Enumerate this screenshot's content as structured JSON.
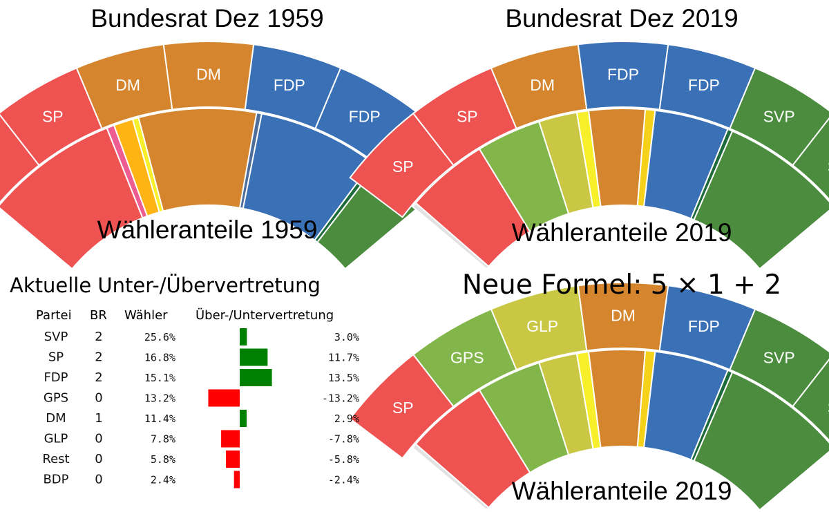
{
  "titles": {
    "top_left": "Bundesrat Dez 1959",
    "top_right": "Bundesrat Dez 2019",
    "mid_left": "Wähleranteile 1959",
    "mid_right": "Wähleranteile 2019",
    "table_title": "Aktuelle Unter-/Übervertretung",
    "formula_title": "Neue Formel: 5 × 1 + 2",
    "bottom_right": "Wähleranteile 2019"
  },
  "colors": {
    "SP": "#ee5352",
    "DM": "#d4852e",
    "FDP": "#3a70b5",
    "SVP": "#4b8c3e",
    "GPS": "#82b64a",
    "GLP": "#c9c744",
    "BDP": "#f5d219",
    "pink": "#ee5d91",
    "orange": "#ffb414",
    "yellow": "#f7ef2a",
    "darkgreen": "#1d6b3c",
    "lightgrey": "#e2e2e2",
    "bar_pos": "#008000",
    "bar_neg": "#ff0000"
  },
  "chart_data": [
    {
      "type": "pie",
      "id": "seats_1959",
      "title": "Bundesrat Dez 1959",
      "note": "semicircle seat arc, one segment per Federal Council seat",
      "labels": [
        "SP",
        "SP",
        "DM",
        "DM",
        "FDP",
        "FDP",
        "SVP"
      ],
      "values": [
        1,
        1,
        1,
        1,
        1,
        1,
        1
      ],
      "colors": [
        "#ee5352",
        "#ee5352",
        "#d4852e",
        "#d4852e",
        "#3a70b5",
        "#3a70b5",
        "#4b8c3e"
      ]
    },
    {
      "type": "pie",
      "id": "votes_1959",
      "title": "Wähleranteile 1959",
      "note": "semicircle voter-share arc, values estimated from segment widths",
      "labels": [
        "SP",
        "pink",
        "orange",
        "yellow",
        "DM",
        "blue-grey",
        "FDP",
        "dark green",
        "SVP"
      ],
      "values": [
        26.4,
        1.5,
        3.8,
        1.2,
        23.2,
        1.0,
        23.7,
        1.0,
        11.6
      ],
      "colors": [
        "#ee5352",
        "#ee5d91",
        "#ffb414",
        "#f7ef2a",
        "#d4852e",
        "#4e6e9c",
        "#3a70b5",
        "#1d6b3c",
        "#4b8c3e"
      ]
    },
    {
      "type": "pie",
      "id": "seats_2019",
      "title": "Bundesrat Dez 2019",
      "labels": [
        "SP",
        "SP",
        "DM",
        "FDP",
        "FDP",
        "SVP",
        "SVP"
      ],
      "values": [
        1,
        1,
        1,
        1,
        1,
        1,
        1
      ],
      "colors": [
        "#ee5352",
        "#ee5352",
        "#d4852e",
        "#3a70b5",
        "#3a70b5",
        "#4b8c3e",
        "#4b8c3e"
      ]
    },
    {
      "type": "pie",
      "id": "votes_2019",
      "title": "Wähleranteile 2019",
      "note": "semicircle voter-share arc, values estimated",
      "labels": [
        "grey",
        "SP",
        "GPS",
        "GLP",
        "BDP",
        "DM",
        "BDP",
        "FDP",
        "dark green",
        "SVP"
      ],
      "values": [
        1.0,
        16.8,
        13.2,
        7.8,
        2.4,
        11.4,
        2.0,
        15.1,
        1.0,
        25.6
      ],
      "colors": [
        "#e2e2e2",
        "#ee5352",
        "#82b64a",
        "#c9c744",
        "#f7ef2a",
        "#d4852e",
        "#f5d219",
        "#3a70b5",
        "#1d6b3c",
        "#4b8c3e"
      ]
    },
    {
      "type": "pie",
      "id": "seats_new_formula",
      "title": "Neue Formel: 5 × 1 + 2",
      "labels": [
        "SP",
        "GPS",
        "GLP",
        "DM",
        "FDP",
        "SVP",
        "SVP"
      ],
      "values": [
        1,
        1,
        1,
        1,
        1,
        1,
        1
      ],
      "colors": [
        "#ee5352",
        "#82b64a",
        "#c9c744",
        "#d4852e",
        "#3a70b5",
        "#4b8c3e",
        "#4b8c3e"
      ]
    },
    {
      "type": "pie",
      "id": "votes_2019_b",
      "title": "Wähleranteile 2019",
      "labels": [
        "grey",
        "SP",
        "GPS",
        "GLP",
        "BDP",
        "DM",
        "BDP",
        "FDP",
        "dark green",
        "SVP"
      ],
      "values": [
        1.0,
        16.8,
        13.2,
        7.8,
        2.4,
        11.4,
        2.0,
        15.1,
        1.0,
        25.6
      ],
      "colors": [
        "#e2e2e2",
        "#ee5352",
        "#82b64a",
        "#c9c744",
        "#f7ef2a",
        "#d4852e",
        "#f5d219",
        "#3a70b5",
        "#1d6b3c",
        "#4b8c3e"
      ]
    },
    {
      "type": "table",
      "id": "representation_table",
      "title": "Aktuelle Unter-/Übervertretung",
      "columns": [
        "Partei",
        "BR",
        "Wähler",
        "Über-/Untervertretung"
      ],
      "rows": [
        {
          "party": "SVP",
          "br": "2",
          "voters": "25.6%",
          "diff": "3.0%",
          "value": 3.0
        },
        {
          "party": "SP",
          "br": "2",
          "voters": "16.8%",
          "diff": "11.7%",
          "value": 11.7
        },
        {
          "party": "FDP",
          "br": "2",
          "voters": "15.1%",
          "diff": "13.5%",
          "value": 13.5
        },
        {
          "party": "GPS",
          "br": "0",
          "voters": "13.2%",
          "diff": "-13.2%",
          "value": -13.2
        },
        {
          "party": "DM",
          "br": "1",
          "voters": "11.4%",
          "diff": "2.9%",
          "value": 2.9
        },
        {
          "party": "GLP",
          "br": "0",
          "voters": "7.8%",
          "diff": "-7.8%",
          "value": -7.8
        },
        {
          "party": "Rest",
          "br": "0",
          "voters": "5.8%",
          "diff": "-5.8%",
          "value": -5.8
        },
        {
          "party": "BDP",
          "br": "0",
          "voters": "2.4%",
          "diff": "-2.4%",
          "value": -2.4
        }
      ],
      "bar_axis": {
        "min": -15,
        "max": 15
      }
    }
  ]
}
